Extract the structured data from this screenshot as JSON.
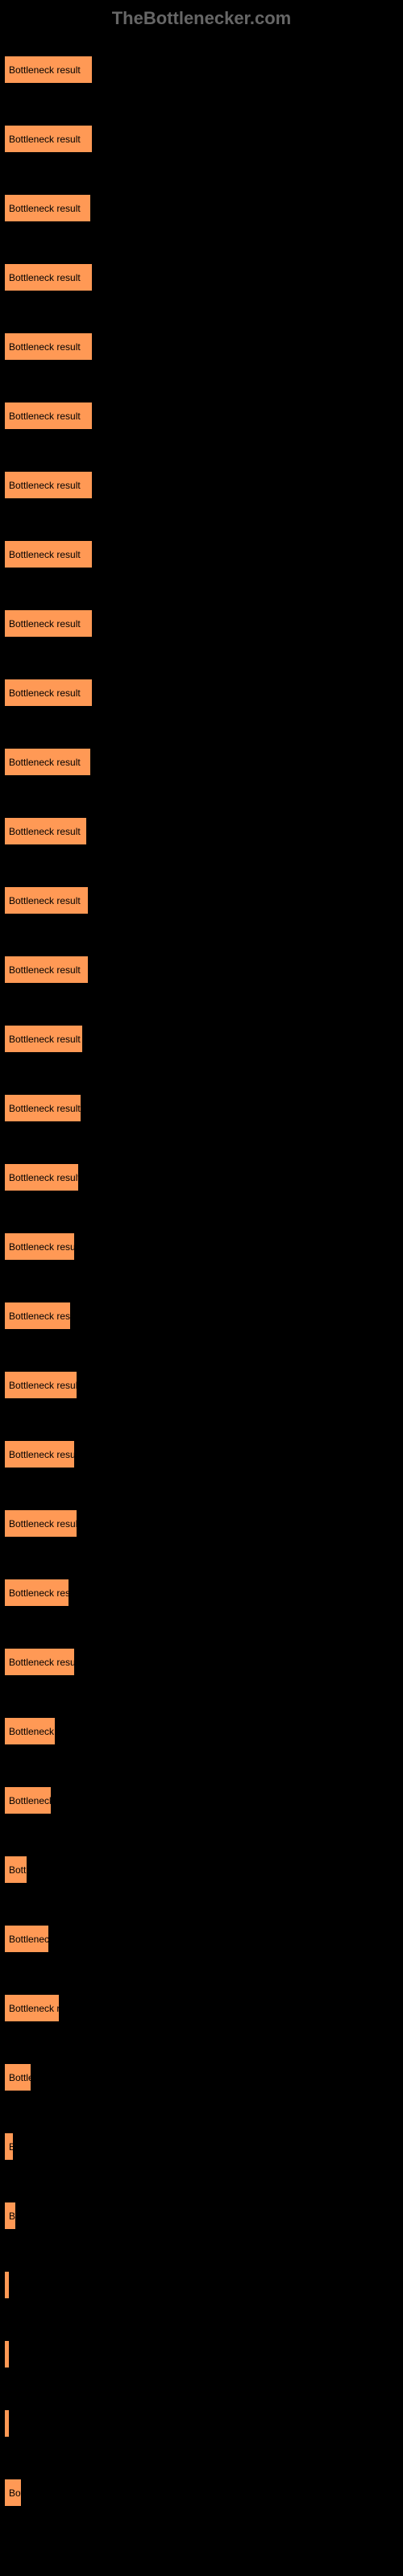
{
  "watermark": "TheBottlenecker.com",
  "chart": {
    "type": "bar",
    "bar_color": "#ff9955",
    "background_color": "#000000",
    "label_color": "#ffffff",
    "bar_text_color": "#000000",
    "bar_label": "Bottleneck result",
    "max_width_percent": 22.5,
    "bars": [
      {
        "width_pct": 22.5
      },
      {
        "width_pct": 22.5
      },
      {
        "width_pct": 22.0
      },
      {
        "width_pct": 22.5
      },
      {
        "width_pct": 22.5
      },
      {
        "width_pct": 22.5
      },
      {
        "width_pct": 22.5
      },
      {
        "width_pct": 22.5
      },
      {
        "width_pct": 22.5
      },
      {
        "width_pct": 22.5
      },
      {
        "width_pct": 22.0
      },
      {
        "width_pct": 21.0
      },
      {
        "width_pct": 21.5
      },
      {
        "width_pct": 21.5
      },
      {
        "width_pct": 20.0
      },
      {
        "width_pct": 19.5
      },
      {
        "width_pct": 19.0
      },
      {
        "width_pct": 18.0
      },
      {
        "width_pct": 17.0
      },
      {
        "width_pct": 18.5
      },
      {
        "width_pct": 18.0
      },
      {
        "width_pct": 18.5
      },
      {
        "width_pct": 16.5
      },
      {
        "width_pct": 18.0
      },
      {
        "width_pct": 13.0
      },
      {
        "width_pct": 12.0
      },
      {
        "width_pct": 6.0
      },
      {
        "width_pct": 11.5
      },
      {
        "width_pct": 14.0
      },
      {
        "width_pct": 7.0
      },
      {
        "width_pct": 2.5
      },
      {
        "width_pct": 3.0
      },
      {
        "width_pct": 1.5
      },
      {
        "width_pct": 1.0
      },
      {
        "width_pct": 0.5
      },
      {
        "width_pct": 4.5
      }
    ]
  }
}
